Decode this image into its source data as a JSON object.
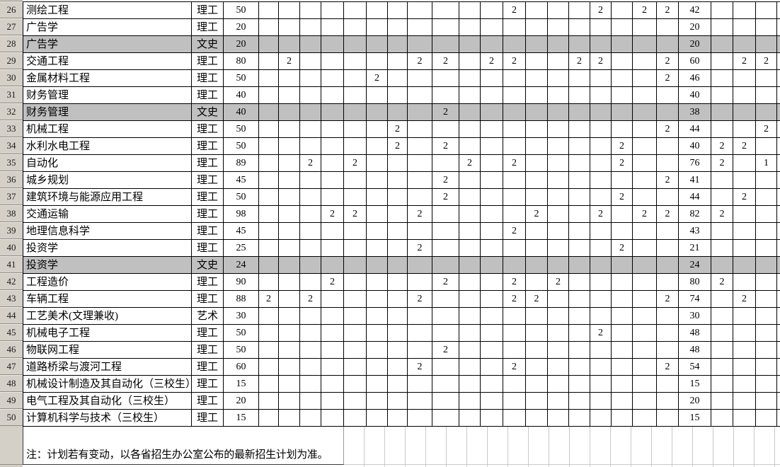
{
  "sheet": {
    "note": "注：计划若有变动，以各省招生办公室公布的最新招生计划为准。",
    "colors": {
      "shaded_row": "#c0c0c0",
      "row_header_bg": "#d4d0c8",
      "grid_line": "#000000",
      "faint_grid_line": "#c9c9c9"
    },
    "distribution_columns": {
      "before_total": 19,
      "after_total": 3
    },
    "rows": [
      {
        "num": "26",
        "major": "测绘工程",
        "type": "理工",
        "plan": "50",
        "before": {
          "12": "2",
          "16": "2",
          "18": "2",
          "19": "2"
        },
        "total": "42",
        "after": {},
        "shaded": false
      },
      {
        "num": "27",
        "major": "广告学",
        "type": "理工",
        "plan": "20",
        "before": {},
        "total": "20",
        "after": {},
        "shaded": false
      },
      {
        "num": "28",
        "major": "广告学",
        "type": "文史",
        "plan": "20",
        "before": {},
        "total": "20",
        "after": {},
        "shaded": true
      },
      {
        "num": "29",
        "major": "交通工程",
        "type": "理工",
        "plan": "80",
        "before": {
          "2": "2",
          "8": "2",
          "9": "2",
          "11": "2",
          "12": "2",
          "15": "2",
          "16": "2",
          "19": "2"
        },
        "total": "60",
        "after": {
          "21": "2",
          "22": "2"
        },
        "shaded": false
      },
      {
        "num": "30",
        "major": "金属材料工程",
        "type": "理工",
        "plan": "50",
        "before": {
          "6": "2",
          "19": "2"
        },
        "total": "46",
        "after": {},
        "shaded": false
      },
      {
        "num": "31",
        "major": "财务管理",
        "type": "理工",
        "plan": "40",
        "before": {},
        "total": "40",
        "after": {},
        "shaded": false
      },
      {
        "num": "32",
        "major": "财务管理",
        "type": "文史",
        "plan": "40",
        "before": {
          "9": "2"
        },
        "total": "38",
        "after": {},
        "shaded": true
      },
      {
        "num": "33",
        "major": "机械工程",
        "type": "理工",
        "plan": "50",
        "before": {
          "7": "2",
          "19": "2"
        },
        "total": "44",
        "after": {
          "22": "2"
        },
        "shaded": false
      },
      {
        "num": "34",
        "major": "水利水电工程",
        "type": "理工",
        "plan": "50",
        "before": {
          "7": "2",
          "9": "2",
          "17": "2"
        },
        "total": "40",
        "after": {
          "20": "2",
          "21": "2"
        },
        "shaded": false
      },
      {
        "num": "35",
        "major": "自动化",
        "type": "理工",
        "plan": "89",
        "before": {
          "3": "2",
          "5": "2",
          "10": "2",
          "12": "2",
          "17": "2"
        },
        "total": "76",
        "after": {
          "20": "2",
          "22": "1"
        },
        "shaded": false
      },
      {
        "num": "36",
        "major": "城乡规划",
        "type": "理工",
        "plan": "45",
        "before": {
          "9": "2",
          "19": "2"
        },
        "total": "41",
        "after": {},
        "shaded": false
      },
      {
        "num": "37",
        "major": "建筑环境与能源应用工程",
        "type": "理工",
        "plan": "50",
        "before": {
          "9": "2",
          "17": "2"
        },
        "total": "44",
        "after": {
          "21": "2"
        },
        "shaded": false
      },
      {
        "num": "38",
        "major": "交通运输",
        "type": "理工",
        "plan": "98",
        "before": {
          "4": "2",
          "5": "2",
          "8": "2",
          "13": "2",
          "16": "2",
          "18": "2",
          "19": "2"
        },
        "total": "82",
        "after": {
          "20": "2"
        },
        "shaded": false
      },
      {
        "num": "39",
        "major": "地理信息科学",
        "type": "理工",
        "plan": "45",
        "before": {
          "12": "2"
        },
        "total": "43",
        "after": {},
        "shaded": false
      },
      {
        "num": "40",
        "major": "投资学",
        "type": "理工",
        "plan": "25",
        "before": {
          "8": "2",
          "17": "2"
        },
        "total": "21",
        "after": {},
        "shaded": false
      },
      {
        "num": "41",
        "major": "投资学",
        "type": "文史",
        "plan": "24",
        "before": {},
        "total": "24",
        "after": {},
        "shaded": true
      },
      {
        "num": "42",
        "major": "工程造价",
        "type": "理工",
        "plan": "90",
        "before": {
          "4": "2",
          "9": "2",
          "12": "2",
          "14": "2"
        },
        "total": "80",
        "after": {
          "20": "2"
        },
        "shaded": false
      },
      {
        "num": "43",
        "major": "车辆工程",
        "type": "理工",
        "plan": "88",
        "before": {
          "1": "2",
          "3": "2",
          "8": "2",
          "12": "2",
          "13": "2",
          "19": "2"
        },
        "total": "74",
        "after": {
          "21": "2"
        },
        "shaded": false
      },
      {
        "num": "44",
        "major": "工艺美术(文理兼收)",
        "type": "艺术",
        "plan": "30",
        "before": {},
        "total": "30",
        "after": {},
        "shaded": false
      },
      {
        "num": "45",
        "major": "机械电子工程",
        "type": "理工",
        "plan": "50",
        "before": {
          "16": "2"
        },
        "total": "48",
        "after": {},
        "shaded": false
      },
      {
        "num": "46",
        "major": "物联网工程",
        "type": "理工",
        "plan": "50",
        "before": {
          "9": "2"
        },
        "total": "48",
        "after": {},
        "shaded": false
      },
      {
        "num": "47",
        "major": "道路桥梁与渡河工程",
        "type": "理工",
        "plan": "60",
        "before": {
          "8": "2",
          "12": "2",
          "19": "2"
        },
        "total": "54",
        "after": {},
        "shaded": false
      },
      {
        "num": "48",
        "major": "机械设计制造及其自动化（三校生）",
        "type": "理工",
        "plan": "15",
        "before": {},
        "total": "15",
        "after": {},
        "shaded": false
      },
      {
        "num": "49",
        "major": "电气工程及其自动化（三校生）",
        "type": "理工",
        "plan": "20",
        "before": {},
        "total": "20",
        "after": {},
        "shaded": false
      },
      {
        "num": "50",
        "major": "计算机科学与技术（三校生）",
        "type": "理工",
        "plan": "15",
        "before": {},
        "total": "15",
        "after": {},
        "shaded": false
      }
    ]
  }
}
